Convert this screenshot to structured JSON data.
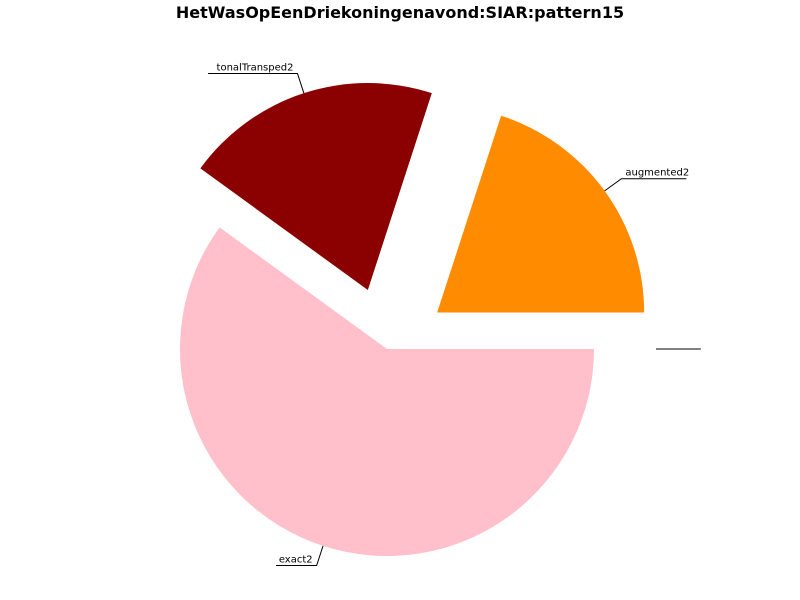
{
  "chart_data": {
    "type": "pie",
    "title": "HetWasOpEenDriekoningenavond:SIAR:pattern15",
    "slices": [
      {
        "label": "augmented2",
        "value": 20,
        "color": "#ff8c00",
        "exploded": true
      },
      {
        "label": "tonalTransped2",
        "value": 20,
        "color": "#8b0000",
        "exploded": true
      },
      {
        "label": "exact2",
        "value": 60,
        "color": "#ffc0cb",
        "exploded": false
      },
      {
        "label": "",
        "value": 0,
        "color": "#ffffff",
        "exploded": true
      },
      {
        "label": "",
        "value": 0,
        "color": "#ffffff",
        "exploded": true
      }
    ],
    "start_angle_deg": 0,
    "direction": "counterclockwise",
    "legend": "none"
  }
}
